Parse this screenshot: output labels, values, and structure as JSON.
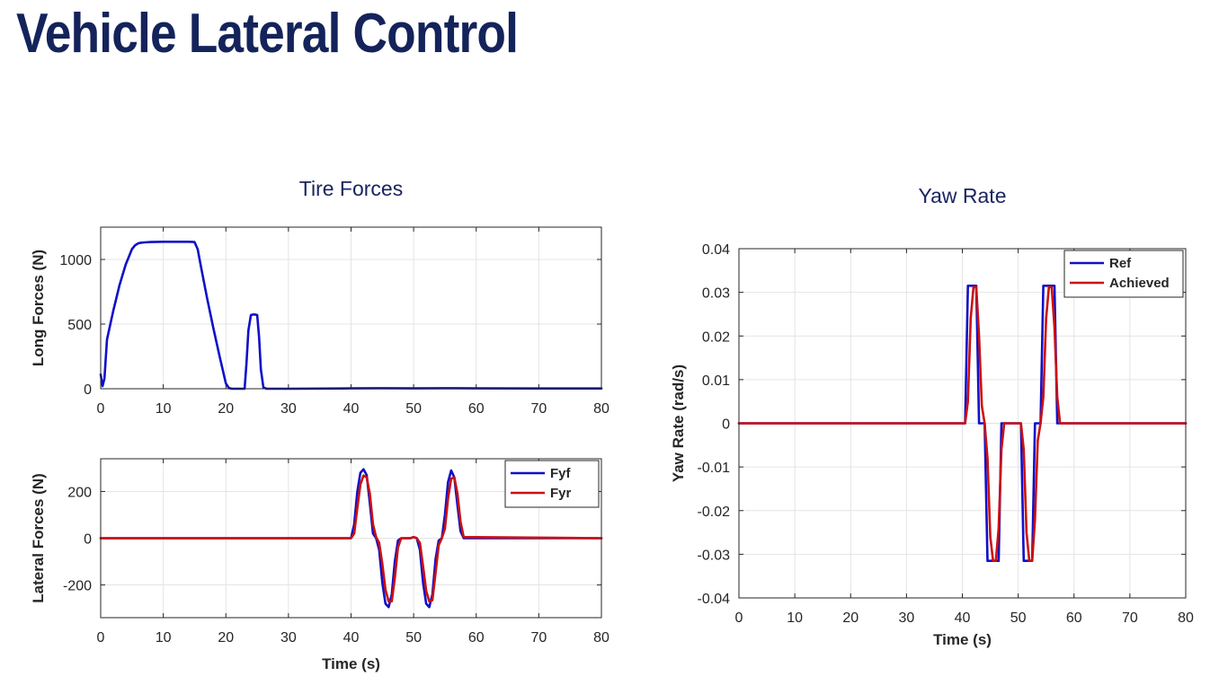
{
  "slide": {
    "title": "Vehicle Lateral Control"
  },
  "chart_data": [
    {
      "id": "long-forces",
      "type": "line",
      "title": "Tire Forces",
      "xlabel": "",
      "ylabel": "Long Forces (N)",
      "xlim": [
        0,
        80
      ],
      "ylim": [
        0,
        1250
      ],
      "xticks": [
        0,
        10,
        20,
        30,
        40,
        50,
        60,
        70,
        80
      ],
      "yticks": [
        0,
        500,
        1000
      ],
      "grid": true,
      "legend": null,
      "colors": [
        "#1010c8"
      ],
      "series": [
        {
          "name": "",
          "x": [
            0,
            0.3,
            0.6,
            1,
            2,
            3,
            4,
            5,
            5.5,
            6,
            6.5,
            7,
            8,
            10,
            12,
            14,
            15,
            15.5,
            16,
            17,
            18,
            19,
            20,
            20.5,
            21,
            22,
            23,
            23.3,
            23.6,
            24,
            24.5,
            25,
            25.3,
            25.6,
            26,
            26.5,
            30,
            40,
            45,
            50,
            55,
            60,
            70,
            80
          ],
          "y": [
            110,
            20,
            80,
            380,
            600,
            800,
            960,
            1080,
            1110,
            1125,
            1130,
            1132,
            1135,
            1137,
            1137,
            1137,
            1135,
            1080,
            950,
            700,
            470,
            250,
            40,
            5,
            0,
            0,
            0,
            200,
            450,
            570,
            575,
            570,
            400,
            150,
            10,
            0,
            0,
            3,
            4,
            3,
            4,
            3,
            2,
            2
          ]
        }
      ]
    },
    {
      "id": "lateral-forces",
      "type": "line",
      "title": "",
      "xlabel": "Time (s)",
      "ylabel": "Lateral Forces (N)",
      "xlim": [
        0,
        80
      ],
      "ylim": [
        -340,
        340
      ],
      "xticks": [
        0,
        10,
        20,
        30,
        40,
        50,
        60,
        70,
        80
      ],
      "yticks": [
        -200,
        0,
        200
      ],
      "grid": true,
      "legend": "top-right",
      "colors": [
        "#1010c8",
        "#cc1010"
      ],
      "series": [
        {
          "name": "Fyf",
          "x": [
            0,
            40,
            40.5,
            41,
            41.5,
            42,
            42.5,
            43,
            43.5,
            44,
            44.5,
            45,
            45.5,
            46,
            46.5,
            47,
            47.5,
            48,
            48.5,
            49,
            49.5,
            50,
            50.5,
            51,
            51.5,
            52,
            52.5,
            53,
            53.5,
            54,
            54.5,
            55,
            55.5,
            56,
            56.5,
            57,
            57.5,
            58,
            80
          ],
          "y": [
            0,
            0,
            60,
            200,
            280,
            295,
            270,
            150,
            20,
            0,
            -50,
            -190,
            -280,
            -295,
            -240,
            -100,
            -10,
            0,
            0,
            0,
            0,
            5,
            0,
            -50,
            -190,
            -280,
            -295,
            -240,
            -90,
            -10,
            0,
            100,
            240,
            290,
            260,
            140,
            30,
            0,
            0
          ]
        },
        {
          "name": "Fyr",
          "x": [
            0,
            40,
            40.5,
            41,
            41.5,
            42,
            42.5,
            43,
            43.5,
            44,
            44.5,
            45,
            45.5,
            46,
            46.5,
            47,
            47.5,
            48,
            48.5,
            49,
            49.5,
            50,
            50.5,
            51,
            51.5,
            52,
            52.5,
            53,
            53.5,
            54,
            54.5,
            55,
            55.5,
            56,
            56.5,
            57,
            57.5,
            58,
            80
          ],
          "y": [
            0,
            0,
            20,
            130,
            230,
            268,
            260,
            190,
            60,
            5,
            -20,
            -110,
            -220,
            -270,
            -270,
            -170,
            -40,
            0,
            0,
            0,
            0,
            5,
            0,
            -20,
            -120,
            -225,
            -270,
            -265,
            -150,
            -30,
            0,
            40,
            170,
            255,
            260,
            190,
            70,
            5,
            0
          ]
        }
      ]
    },
    {
      "id": "yaw-rate",
      "type": "line",
      "title": "Yaw Rate",
      "xlabel": "Time (s)",
      "ylabel": "Yaw Rate (rad/s)",
      "xlim": [
        0,
        80
      ],
      "ylim": [
        -0.04,
        0.04
      ],
      "xticks": [
        0,
        10,
        20,
        30,
        40,
        50,
        60,
        70,
        80
      ],
      "yticks": [
        -0.04,
        -0.03,
        -0.02,
        -0.01,
        0,
        0.01,
        0.02,
        0.03,
        0.04
      ],
      "ytick_labels": [
        "-0.04",
        "-0.03",
        "-0.02",
        "-0.01",
        "0",
        "0.01",
        "0.02",
        "0.03",
        "0.04"
      ],
      "grid": true,
      "legend": "top-right",
      "colors": [
        "#1010c8",
        "#cc1010"
      ],
      "series": [
        {
          "name": "Ref",
          "x": [
            0,
            40.5,
            41,
            42,
            42.5,
            43,
            44,
            44.5,
            45.5,
            46.5,
            47,
            48,
            49,
            50,
            50.5,
            51,
            51.5,
            52.5,
            53,
            53.5,
            54,
            54.5,
            55.5,
            56.5,
            57,
            80
          ],
          "y": [
            0,
            0,
            0.0315,
            0.0315,
            0.0315,
            0,
            0,
            -0.0315,
            -0.0315,
            -0.0315,
            0,
            0,
            0,
            0,
            0,
            -0.0315,
            -0.0315,
            -0.0315,
            0,
            0,
            0,
            0.0315,
            0.0315,
            0.0315,
            0,
            0
          ]
        },
        {
          "name": "Achieved",
          "x": [
            0,
            40.5,
            41,
            41.5,
            42,
            42.5,
            43,
            43.5,
            44,
            44.5,
            45,
            45.5,
            46,
            46.5,
            47,
            47.5,
            48,
            49,
            50,
            50.5,
            51,
            51.5,
            52,
            52.5,
            53,
            53.5,
            54,
            54.5,
            55,
            55.5,
            56,
            56.5,
            57,
            57.5,
            58,
            80
          ],
          "y": [
            0,
            0,
            0.005,
            0.024,
            0.0312,
            0.0312,
            0.02,
            0.004,
            0,
            -0.008,
            -0.026,
            -0.0315,
            -0.0315,
            -0.024,
            -0.006,
            0,
            0,
            0,
            0,
            0,
            -0.006,
            -0.025,
            -0.0315,
            -0.0315,
            -0.022,
            -0.004,
            0,
            0.006,
            0.024,
            0.0312,
            0.0312,
            0.022,
            0.006,
            0,
            0,
            0
          ]
        }
      ]
    }
  ]
}
